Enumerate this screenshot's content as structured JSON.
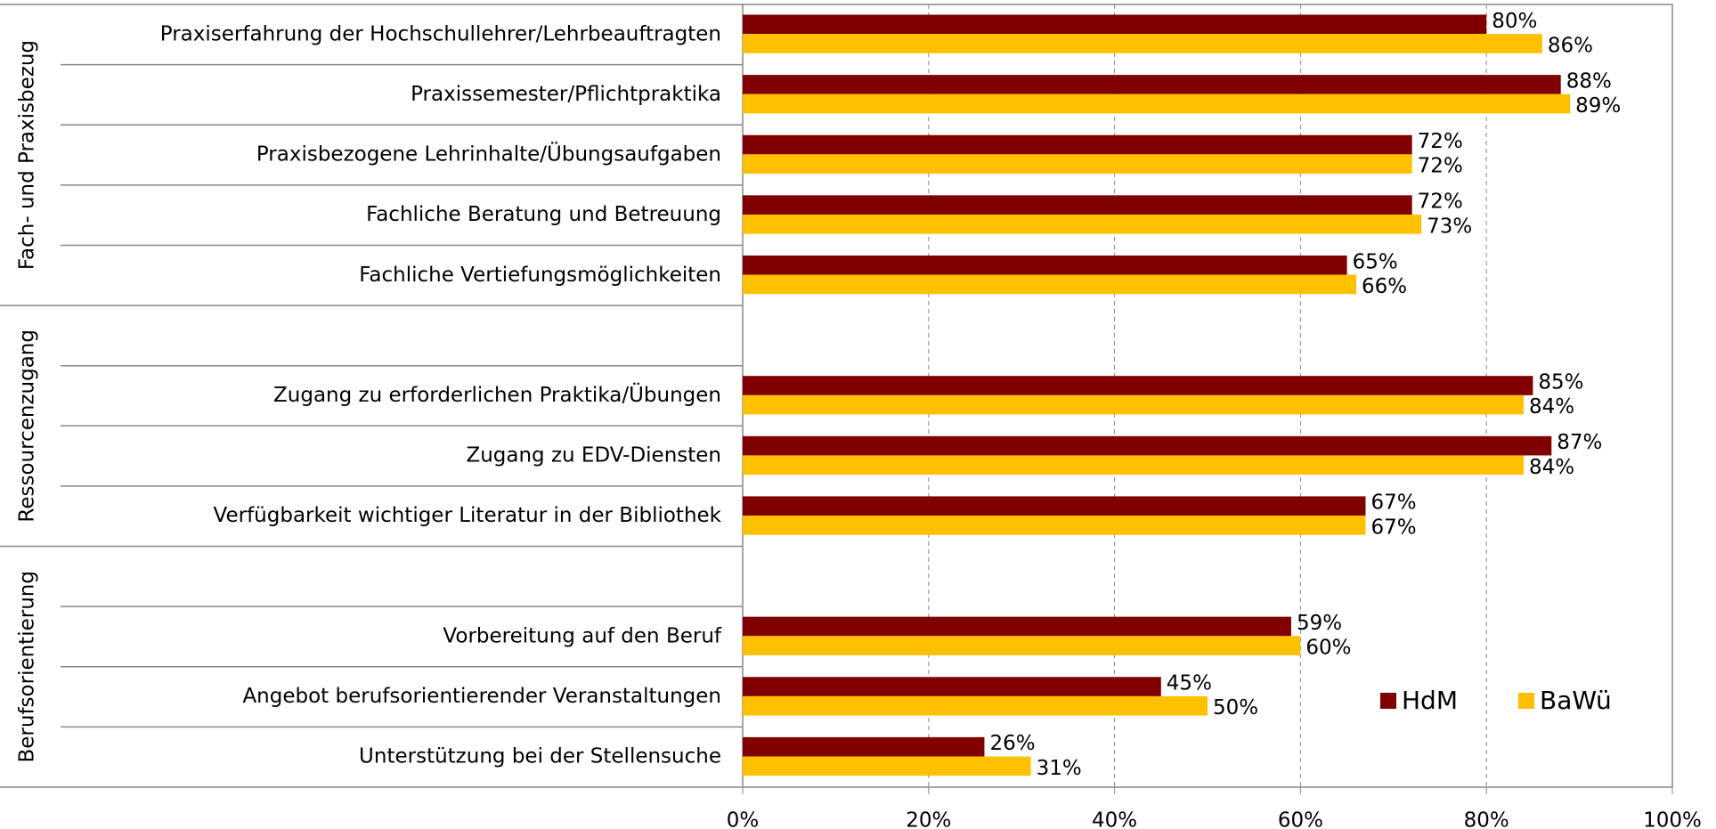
{
  "chart_data": {
    "type": "bar",
    "orientation": "horizontal",
    "groups": [
      "Fach- und Praxisbezug",
      "Ressourcenzugang",
      "Berufsorientierung"
    ],
    "categories": [
      "Praxiserfahrung der Hochschullehrer/Lehrbeauftragten",
      "Praxissemester/Pflichtpraktika",
      "Praxisbezogene Lehrinhalte/Übungsaufgaben",
      "Fachliche Beratung und Betreuung",
      "Fachliche Vertiefungsmöglichkeiten",
      null,
      "Zugang zu erforderlichen Praktika/Übungen",
      "Zugang zu EDV-Diensten",
      "Verfügbarkeit wichtiger Literatur in der Bibliothek",
      null,
      "Vorbereitung auf den Beruf",
      "Angebot berufsorientierender Veranstaltungen",
      "Unterstützung bei der Stellensuche"
    ],
    "series": [
      {
        "name": "HdM",
        "color": "#800000",
        "values": [
          80,
          88,
          72,
          72,
          65,
          null,
          85,
          87,
          67,
          null,
          59,
          45,
          26
        ],
        "value_labels": [
          "80%",
          "88%",
          "72%",
          "72%",
          "65%",
          null,
          "85%",
          "87%",
          "67%",
          null,
          "59%",
          "45%",
          "26%"
        ]
      },
      {
        "name": "BaWü",
        "color": "#FFC000",
        "values": [
          86,
          89,
          72,
          73,
          66,
          null,
          84,
          84,
          67,
          null,
          60,
          50,
          31
        ],
        "value_labels": [
          "86%",
          "89%",
          "72%",
          "73%",
          "66%",
          null,
          "84%",
          "84%",
          "67%",
          null,
          "60%",
          "50%",
          "31%"
        ]
      }
    ],
    "xlim": [
      0,
      100
    ],
    "xticks": [
      {
        "value": 0,
        "label": "0%"
      },
      {
        "value": 20,
        "label": "20%"
      },
      {
        "value": 40,
        "label": "40%"
      },
      {
        "value": 60,
        "label": "60%"
      },
      {
        "value": 80,
        "label": "80%"
      },
      {
        "value": 100,
        "label": "100%"
      }
    ],
    "grid": true,
    "legend": "lower right"
  }
}
